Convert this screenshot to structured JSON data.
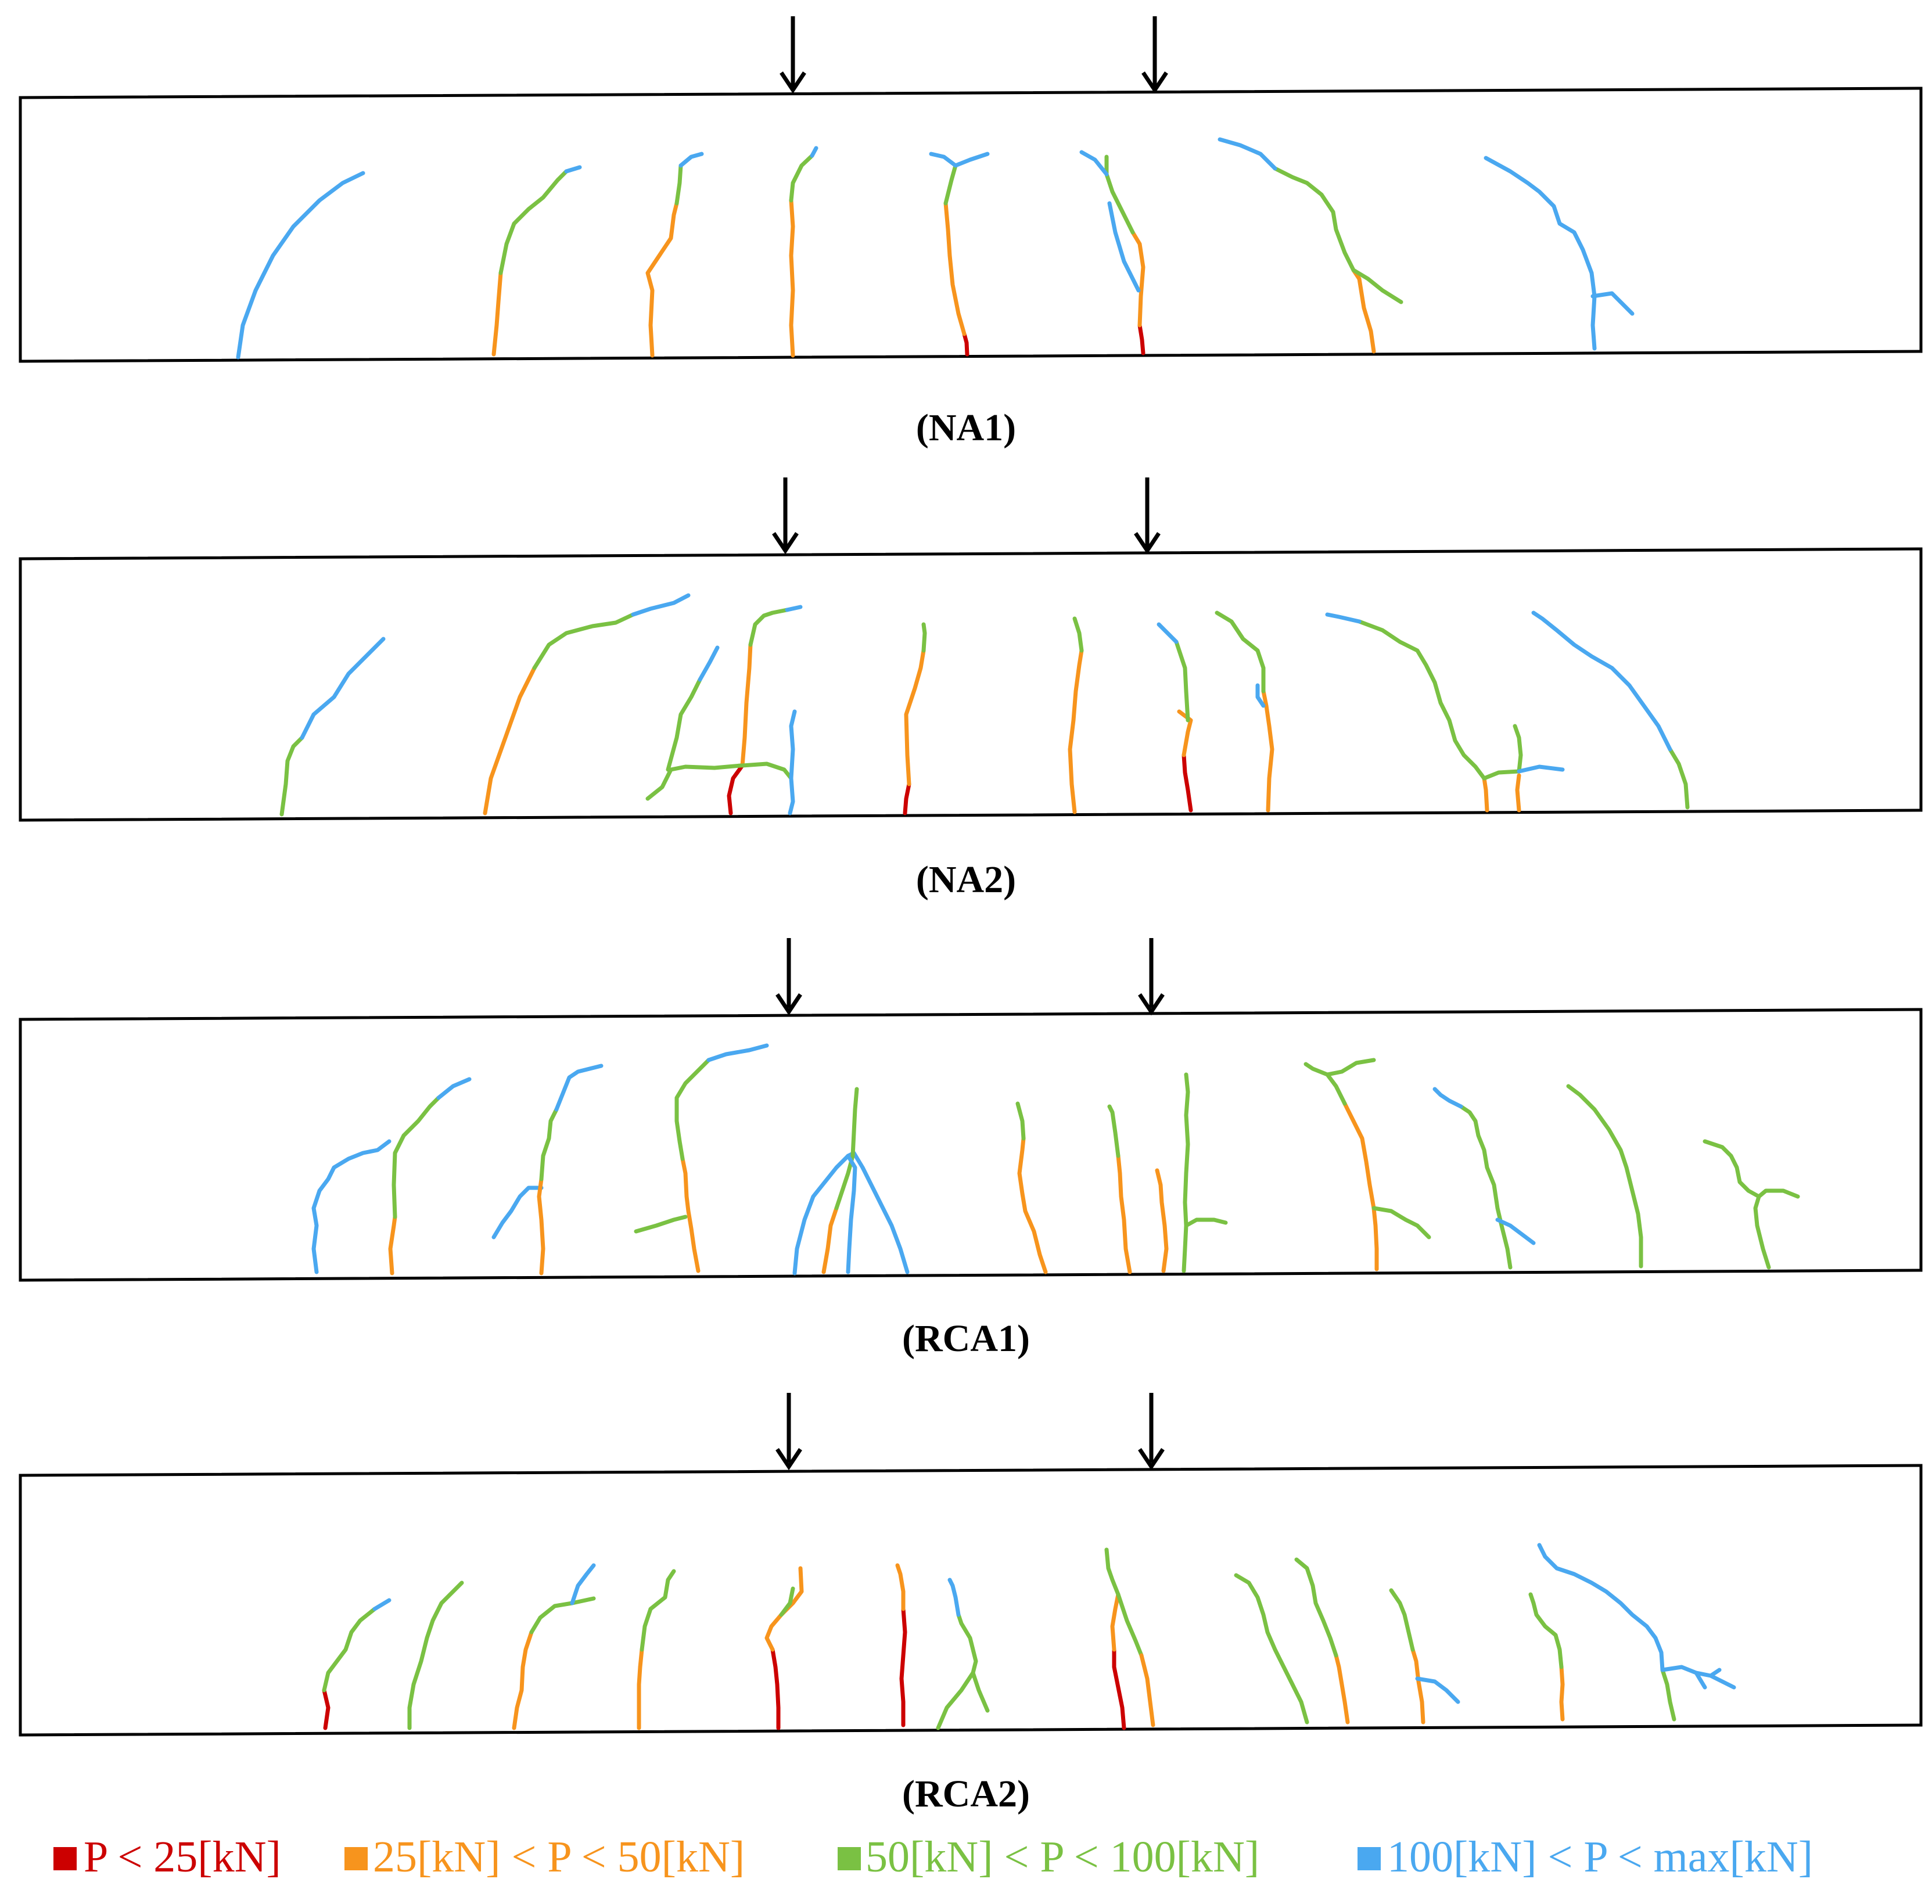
{
  "panels": [
    {
      "id": "NA1",
      "caption": "(NA1)"
    },
    {
      "id": "NA2",
      "caption": "(NA2)"
    },
    {
      "id": "RCA1",
      "caption": "(RCA1)"
    },
    {
      "id": "RCA2",
      "caption": "(RCA2)"
    }
  ],
  "legend": [
    {
      "label": "P < 25[kN]",
      "color": "#cc0000"
    },
    {
      "label": "25[kN] < P < 50[kN]",
      "color": "#f7941d"
    },
    {
      "label": "50[kN] < P < 100[kN]",
      "color": "#7ac143"
    },
    {
      "label": "100[kN] < P < max[kN]",
      "color": "#4aa8f0"
    }
  ],
  "colors": {
    "red": "#cc0000",
    "orange": "#f7941d",
    "green": "#7ac143",
    "blue": "#4aa8f0",
    "outline": "#000000"
  },
  "icons": {
    "load_arrow": "down-arrow-icon",
    "legend_marker": "square-swatch-icon"
  }
}
